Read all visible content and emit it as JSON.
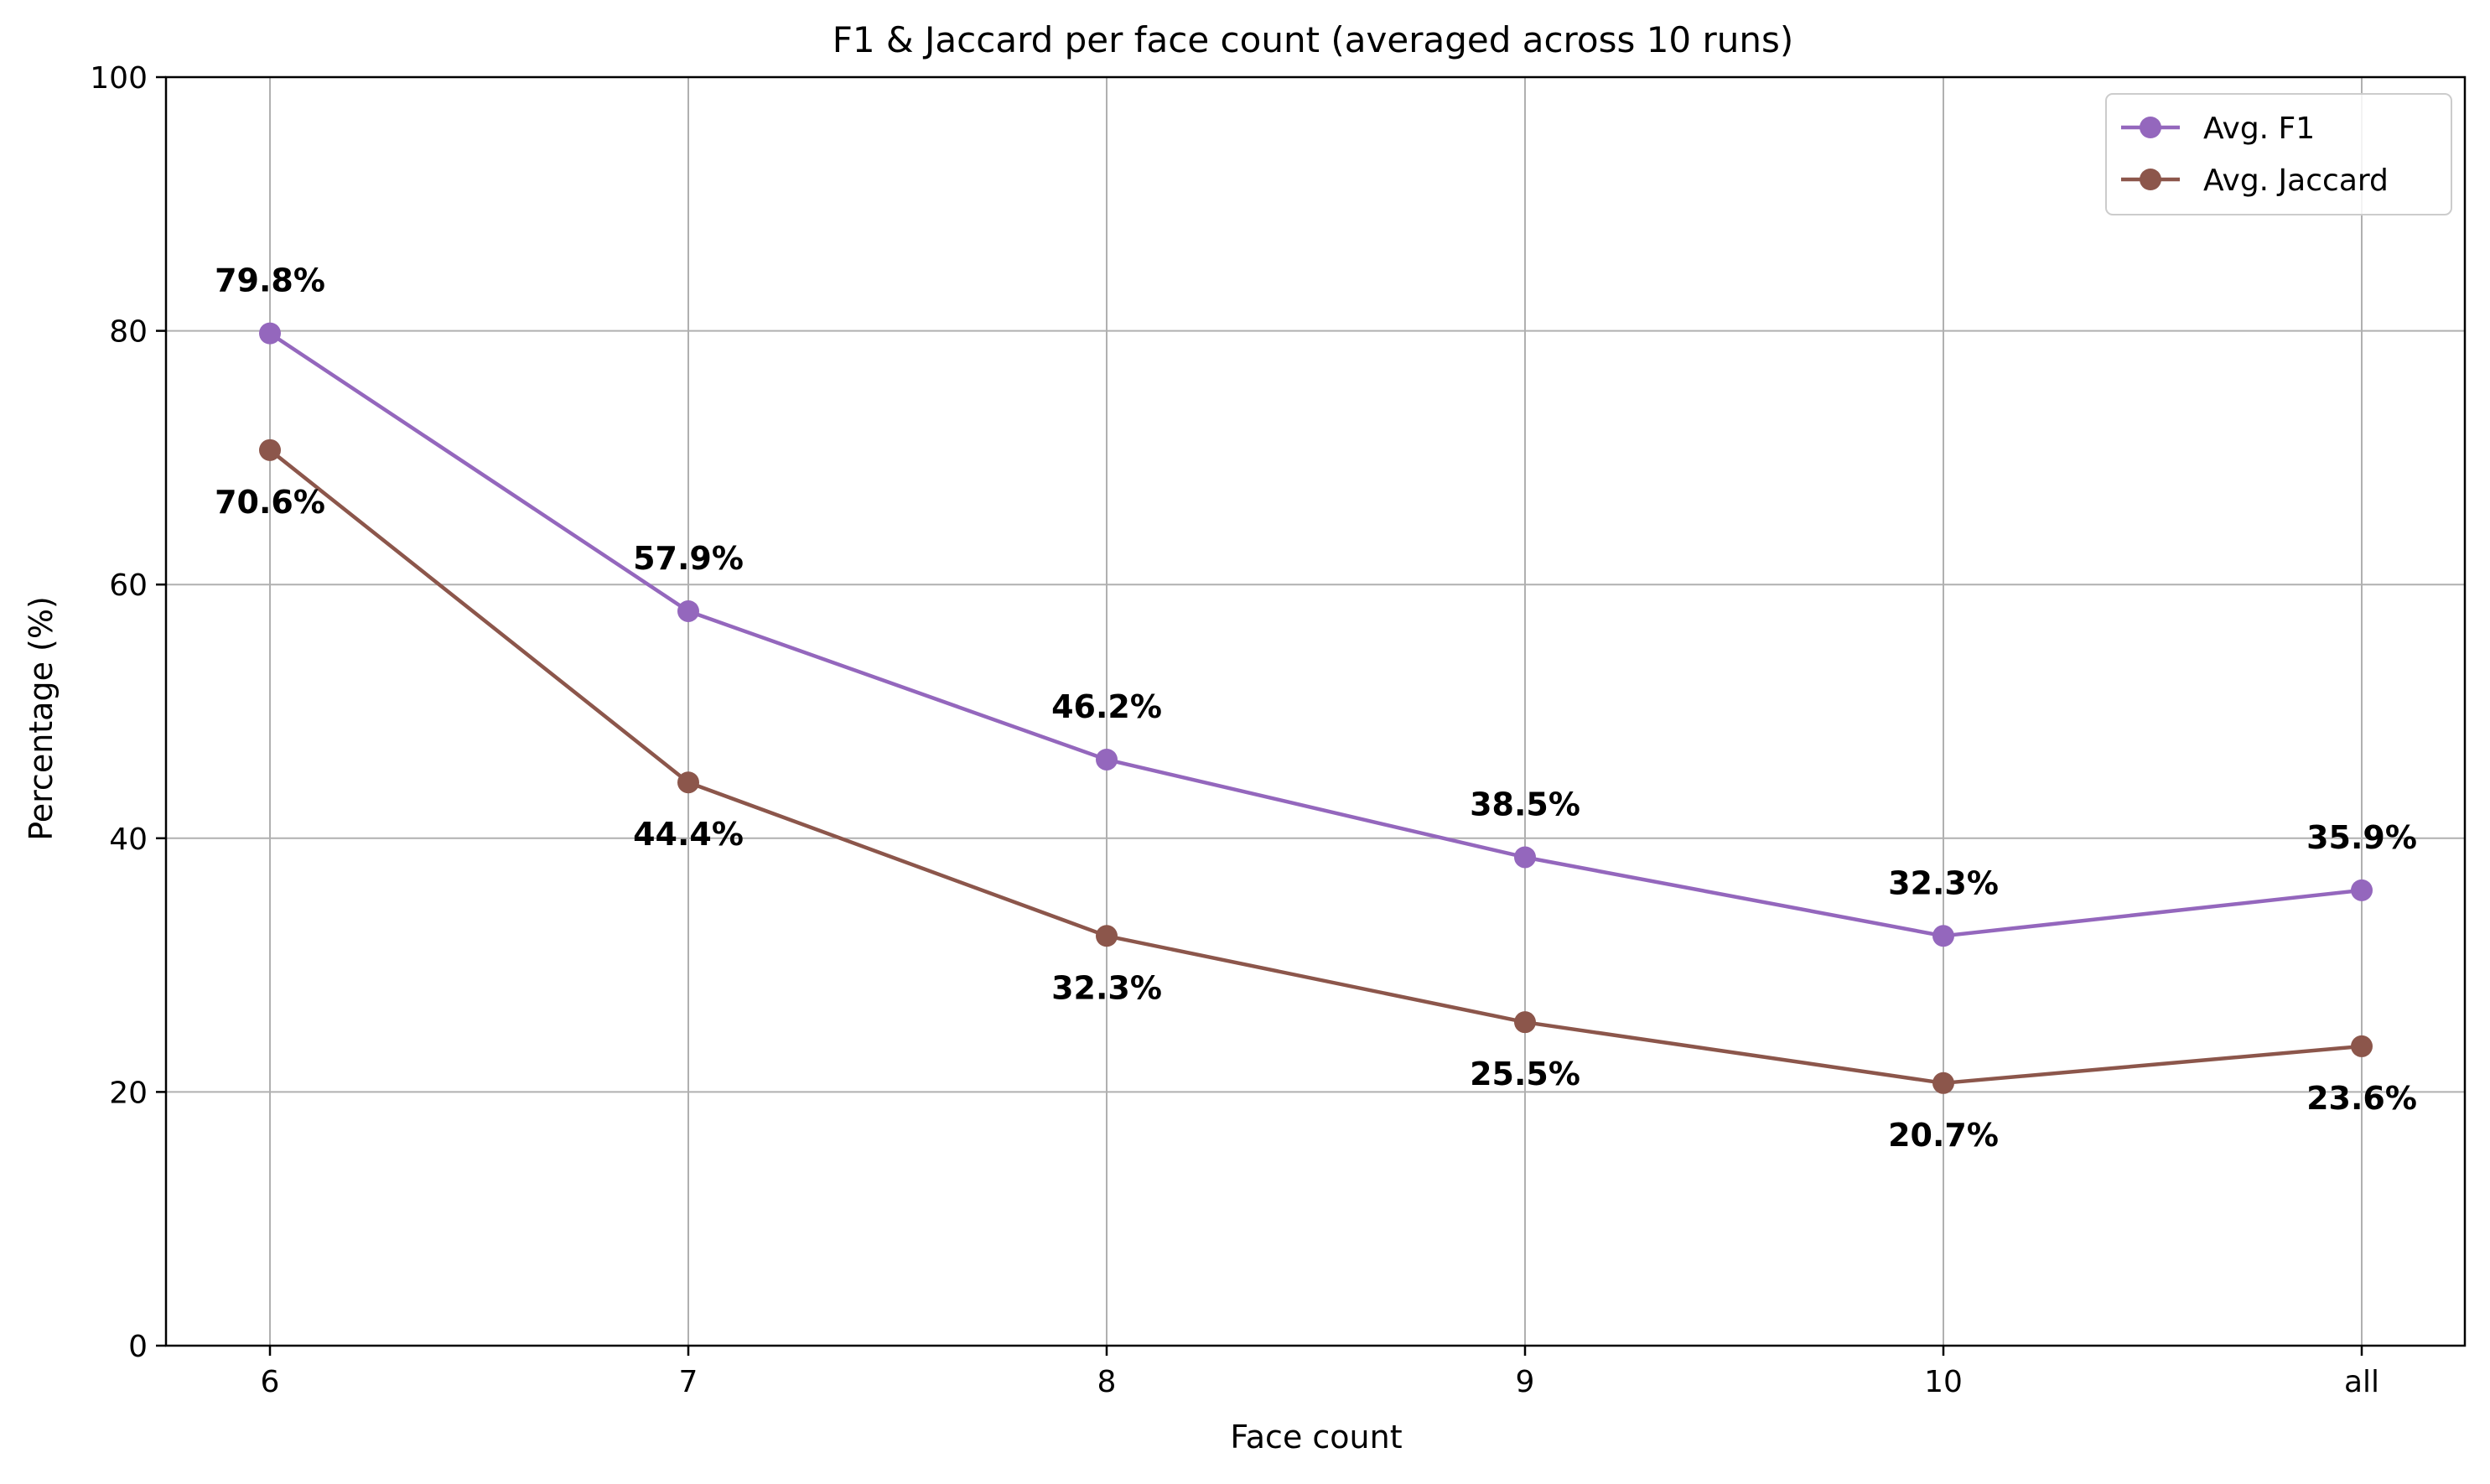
{
  "chart_data": {
    "type": "line",
    "title": "F1 & Jaccard per face count (averaged across 10 runs)",
    "xlabel": "Face count",
    "ylabel": "Percentage (%)",
    "categories": [
      "6",
      "7",
      "8",
      "9",
      "10",
      "all"
    ],
    "ylim": [
      0,
      100
    ],
    "yticks": [
      0,
      20,
      40,
      60,
      80,
      100
    ],
    "grid": true,
    "legend_position": "top-right",
    "series": [
      {
        "name": "Avg. F1",
        "color": "#9467bd",
        "marker": "circle",
        "values": [
          79.8,
          57.9,
          46.2,
          38.5,
          32.3,
          35.9
        ],
        "labels": [
          "79.8%",
          "57.9%",
          "46.2%",
          "38.5%",
          "32.3%",
          "35.9%"
        ],
        "label_position": "above"
      },
      {
        "name": "Avg. Jaccard",
        "color": "#8c564b",
        "marker": "circle",
        "values": [
          70.6,
          44.4,
          32.3,
          25.5,
          20.7,
          23.6
        ],
        "labels": [
          "70.6%",
          "44.4%",
          "32.3%",
          "25.5%",
          "20.7%",
          "23.6%"
        ],
        "label_position": "below"
      }
    ]
  }
}
